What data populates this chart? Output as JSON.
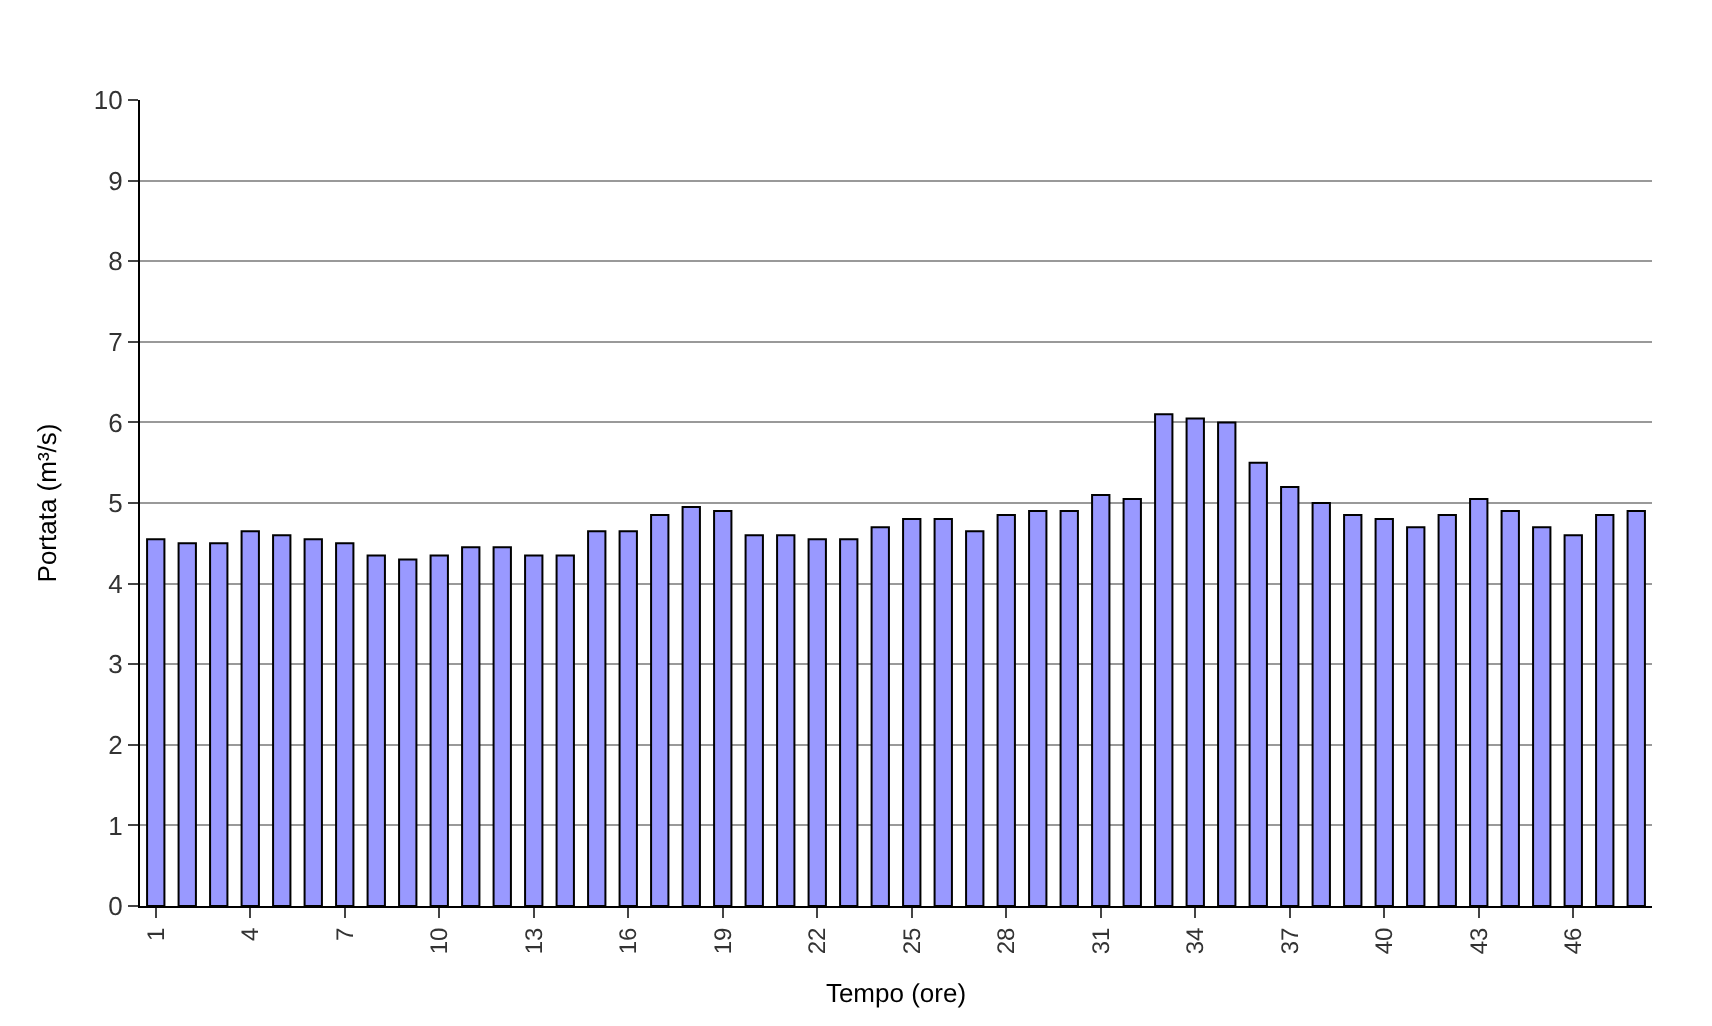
{
  "chart_data": {
    "type": "bar",
    "xlabel": "Tempo (ore)",
    "ylabel": "Portata (m³/s)",
    "categories": [
      "1",
      null,
      null,
      "4",
      null,
      null,
      "7",
      null,
      null,
      "10",
      null,
      null,
      "13",
      null,
      null,
      "16",
      null,
      null,
      "19",
      null,
      null,
      "22",
      null,
      null,
      "25",
      null,
      null,
      "28",
      null,
      null,
      "31",
      null,
      null,
      "34",
      null,
      null,
      "37",
      null,
      null,
      "40",
      null,
      null,
      "43",
      null,
      null,
      "46",
      null,
      null
    ],
    "values": [
      4.55,
      4.5,
      4.5,
      4.65,
      4.6,
      4.55,
      4.5,
      4.35,
      4.3,
      4.35,
      4.45,
      4.45,
      4.35,
      4.35,
      4.65,
      4.65,
      4.85,
      4.95,
      4.9,
      4.6,
      4.6,
      4.55,
      4.55,
      4.7,
      4.8,
      4.8,
      4.65,
      4.85,
      4.9,
      4.9,
      5.1,
      5.05,
      6.1,
      6.05,
      6.0,
      5.5,
      5.2,
      5.0,
      4.85,
      4.8,
      4.7,
      4.85,
      5.05,
      4.9,
      4.7,
      4.6,
      4.85,
      4.9
    ],
    "color": "#9999ff",
    "ylim": [
      0,
      10
    ],
    "yticks": [
      0,
      1,
      2,
      3,
      4,
      5,
      6,
      7,
      8,
      9,
      10
    ],
    "grid": "y"
  }
}
